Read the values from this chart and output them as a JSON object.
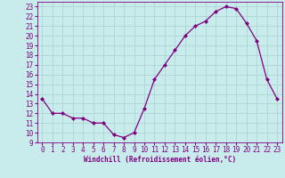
{
  "x": [
    0,
    1,
    2,
    3,
    4,
    5,
    6,
    7,
    8,
    9,
    10,
    11,
    12,
    13,
    14,
    15,
    16,
    17,
    18,
    19,
    20,
    21,
    22,
    23
  ],
  "y": [
    13.5,
    12.0,
    12.0,
    11.5,
    11.5,
    11.0,
    11.0,
    9.8,
    9.5,
    10.0,
    12.5,
    15.5,
    17.0,
    18.5,
    20.0,
    21.0,
    21.5,
    22.5,
    23.0,
    22.8,
    21.3,
    19.5,
    15.5,
    13.5
  ],
  "line_color": "#800080",
  "marker": "D",
  "marker_size": 2,
  "bg_color": "#c8ecec",
  "grid_color": "#aed4d4",
  "xlabel": "Windchill (Refroidissement éolien,°C)",
  "xlabel_color": "#800080",
  "tick_color": "#800080",
  "label_fontsize": 5.5,
  "xlabel_fontsize": 5.5,
  "ylim": [
    9,
    23.5
  ],
  "xlim": [
    -0.5,
    23.5
  ],
  "yticks": [
    9,
    10,
    11,
    12,
    13,
    14,
    15,
    16,
    17,
    18,
    19,
    20,
    21,
    22,
    23
  ],
  "xticks": [
    0,
    1,
    2,
    3,
    4,
    5,
    6,
    7,
    8,
    9,
    10,
    11,
    12,
    13,
    14,
    15,
    16,
    17,
    18,
    19,
    20,
    21,
    22,
    23
  ]
}
